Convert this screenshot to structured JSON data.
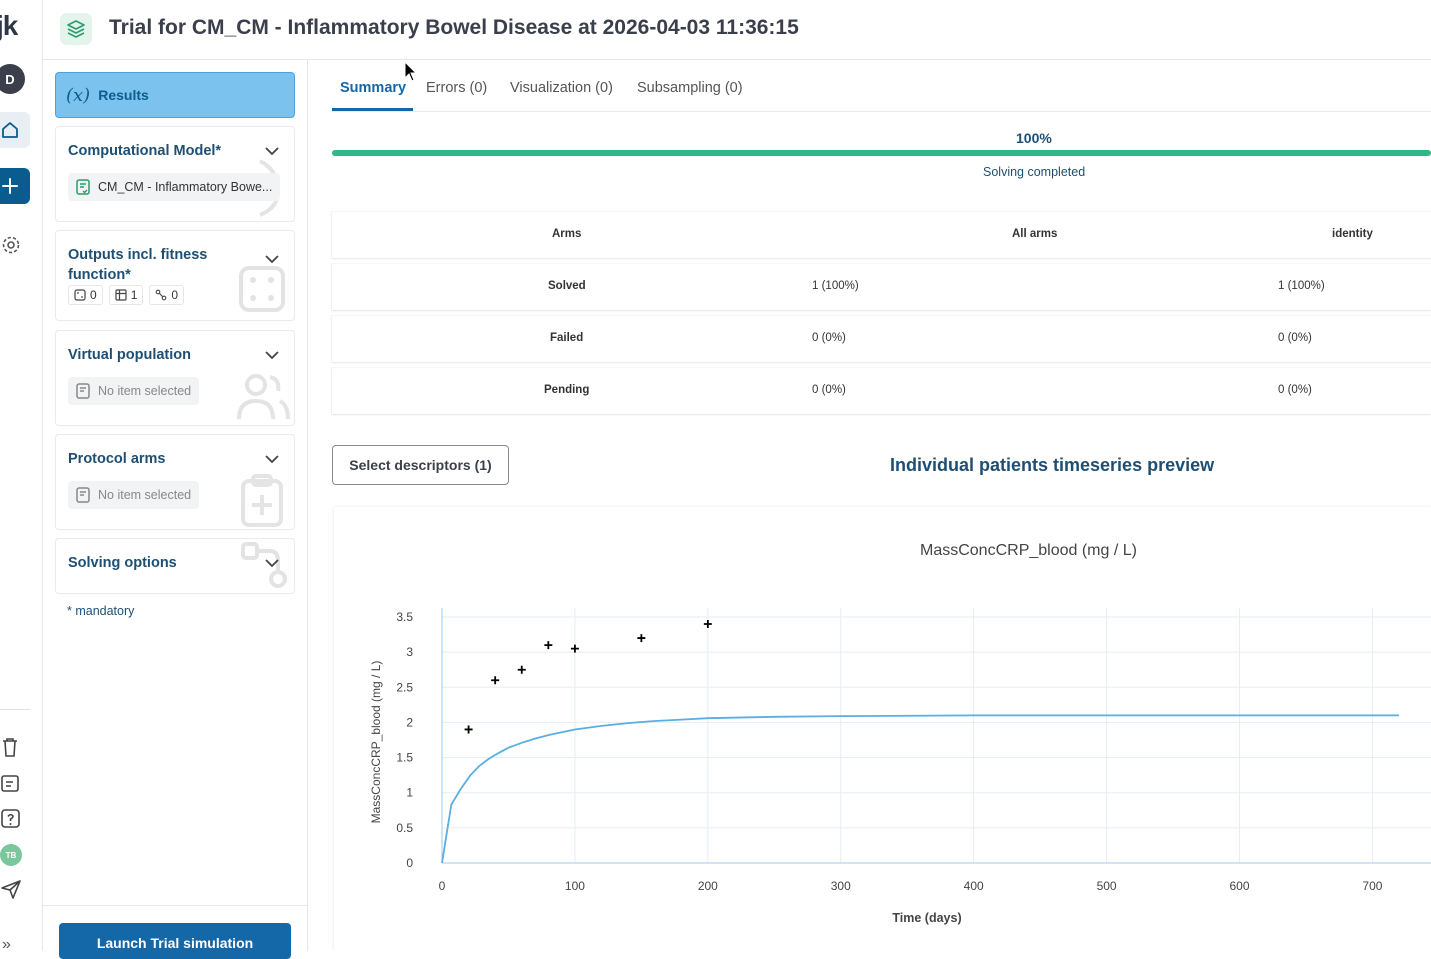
{
  "rail": {
    "logo": "jk",
    "user_initial": "D",
    "bottom_avatar": "TB",
    "expand": "»"
  },
  "header": {
    "title": "Trial for CM_CM - Inflammatory Bowel Disease at 2026-04-03 11:36:15"
  },
  "panel": {
    "results_label": "Results",
    "results_icon": "(x)",
    "computational_model": {
      "title": "Computational Model*",
      "value": "CM_CM - Inflammatory Bowe..."
    },
    "outputs": {
      "title": "Outputs incl. fitness function*",
      "counts": [
        "0",
        "1",
        "0"
      ]
    },
    "virtual_population": {
      "title": "Virtual population",
      "value": "No item selected"
    },
    "protocol_arms": {
      "title": "Protocol arms",
      "value": "No item selected"
    },
    "solving_options": {
      "title": "Solving options"
    },
    "mandatory_note": "* mandatory",
    "launch_label": "Launch Trial simulation"
  },
  "tabs": [
    {
      "label": "Summary",
      "active": true
    },
    {
      "label": "Errors (0)",
      "active": false
    },
    {
      "label": "Visualization (0)",
      "active": false
    },
    {
      "label": "Subsampling (0)",
      "active": false
    }
  ],
  "progress": {
    "percent_label": "100%",
    "fraction": 1.0,
    "status": "Solving completed",
    "color": "#2fb888"
  },
  "summary_table": {
    "headers": [
      "Arms",
      "All arms",
      "identity"
    ],
    "rows": [
      [
        "Solved",
        "1 (100%)",
        "1 (100%)"
      ],
      [
        "Failed",
        "0 (0%)",
        "0 (0%)"
      ],
      [
        "Pending",
        "0 (0%)",
        "0 (0%)"
      ]
    ]
  },
  "descriptors_button": "Select descriptors (1)",
  "preview_title": "Individual patients timeseries preview",
  "chart_data": {
    "type": "line",
    "title": "MassConcCRP_blood (mg / L)",
    "xlabel": "Time (days)",
    "ylabel": "MassConcCRP_blood (mg / L)",
    "xlim": [
      0,
      720
    ],
    "ylim": [
      0,
      3.5
    ],
    "x_ticks": [
      0,
      100,
      200,
      300,
      400,
      500,
      600,
      700
    ],
    "y_ticks": [
      0,
      0.5,
      1,
      1.5,
      2,
      2.5,
      3,
      3.5
    ],
    "grid": true,
    "series": [
      {
        "kind": "line",
        "color": "#5aaee0",
        "x": [
          0,
          7,
          14,
          21,
          28,
          35,
          42,
          50,
          60,
          70,
          80,
          90,
          100,
          120,
          140,
          160,
          180,
          200,
          250,
          300,
          400,
          500,
          600,
          720
        ],
        "y": [
          0,
          0.83,
          1.05,
          1.24,
          1.38,
          1.48,
          1.56,
          1.64,
          1.71,
          1.77,
          1.82,
          1.86,
          1.9,
          1.95,
          1.99,
          2.02,
          2.04,
          2.06,
          2.08,
          2.09,
          2.1,
          2.1,
          2.1,
          2.1
        ]
      },
      {
        "kind": "markers",
        "marker": "cross",
        "color": "#000000",
        "x": [
          20,
          40,
          60,
          80,
          100,
          150,
          200
        ],
        "y": [
          1.9,
          2.6,
          2.75,
          3.1,
          3.05,
          3.2,
          3.4
        ]
      }
    ]
  }
}
